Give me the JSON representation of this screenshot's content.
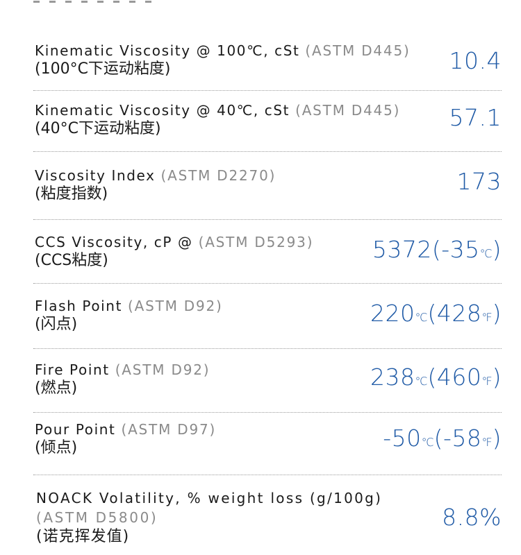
{
  "specs": [
    {
      "label": "Kinematic Viscosity @ 100℃, cSt",
      "standard": "(ASTM D445)",
      "cn": "(100°C下运动粘度)",
      "value": "10.4"
    },
    {
      "label": "Kinematic Viscosity @ 40℃, cSt",
      "standard": "(ASTM D445)",
      "cn": "(40°C下运动粘度)",
      "value": "57.1"
    },
    {
      "label": "Viscosity Index",
      "standard": "(ASTM D2270)",
      "cn": "(粘度指数)",
      "value": "173"
    },
    {
      "label": "CCS Viscosity, cP @",
      "standard": "(ASTM D5293)",
      "cn": "(CCS粘度)",
      "value_main": "5372(-35",
      "value_unit": "℃",
      "value_tail": ")"
    },
    {
      "label": "Flash Point",
      "standard": "(ASTM D92)",
      "cn": "(闪点)",
      "value_a": "220",
      "unit_a": "℃",
      "value_b": "(428",
      "unit_b": "℉",
      "value_tail": ")"
    },
    {
      "label": "Fire Point",
      "standard": "(ASTM D92)",
      "cn": "(燃点)",
      "value_a": "238",
      "unit_a": "℃",
      "value_b": "(460",
      "unit_b": "℉",
      "value_tail": ")"
    },
    {
      "label": "Pour Point",
      "standard": "(ASTM D97)",
      "cn": "(倾点)",
      "value_a": "-50",
      "unit_a": "℃",
      "value_b": "(-58",
      "unit_b": "℉",
      "value_tail": ")"
    },
    {
      "label": "NOACK Volatility, % weight loss (g/100g)",
      "standard": "(ASTM D5800)",
      "cn": "(诺克挥发值)",
      "value": "8.8%"
    }
  ]
}
